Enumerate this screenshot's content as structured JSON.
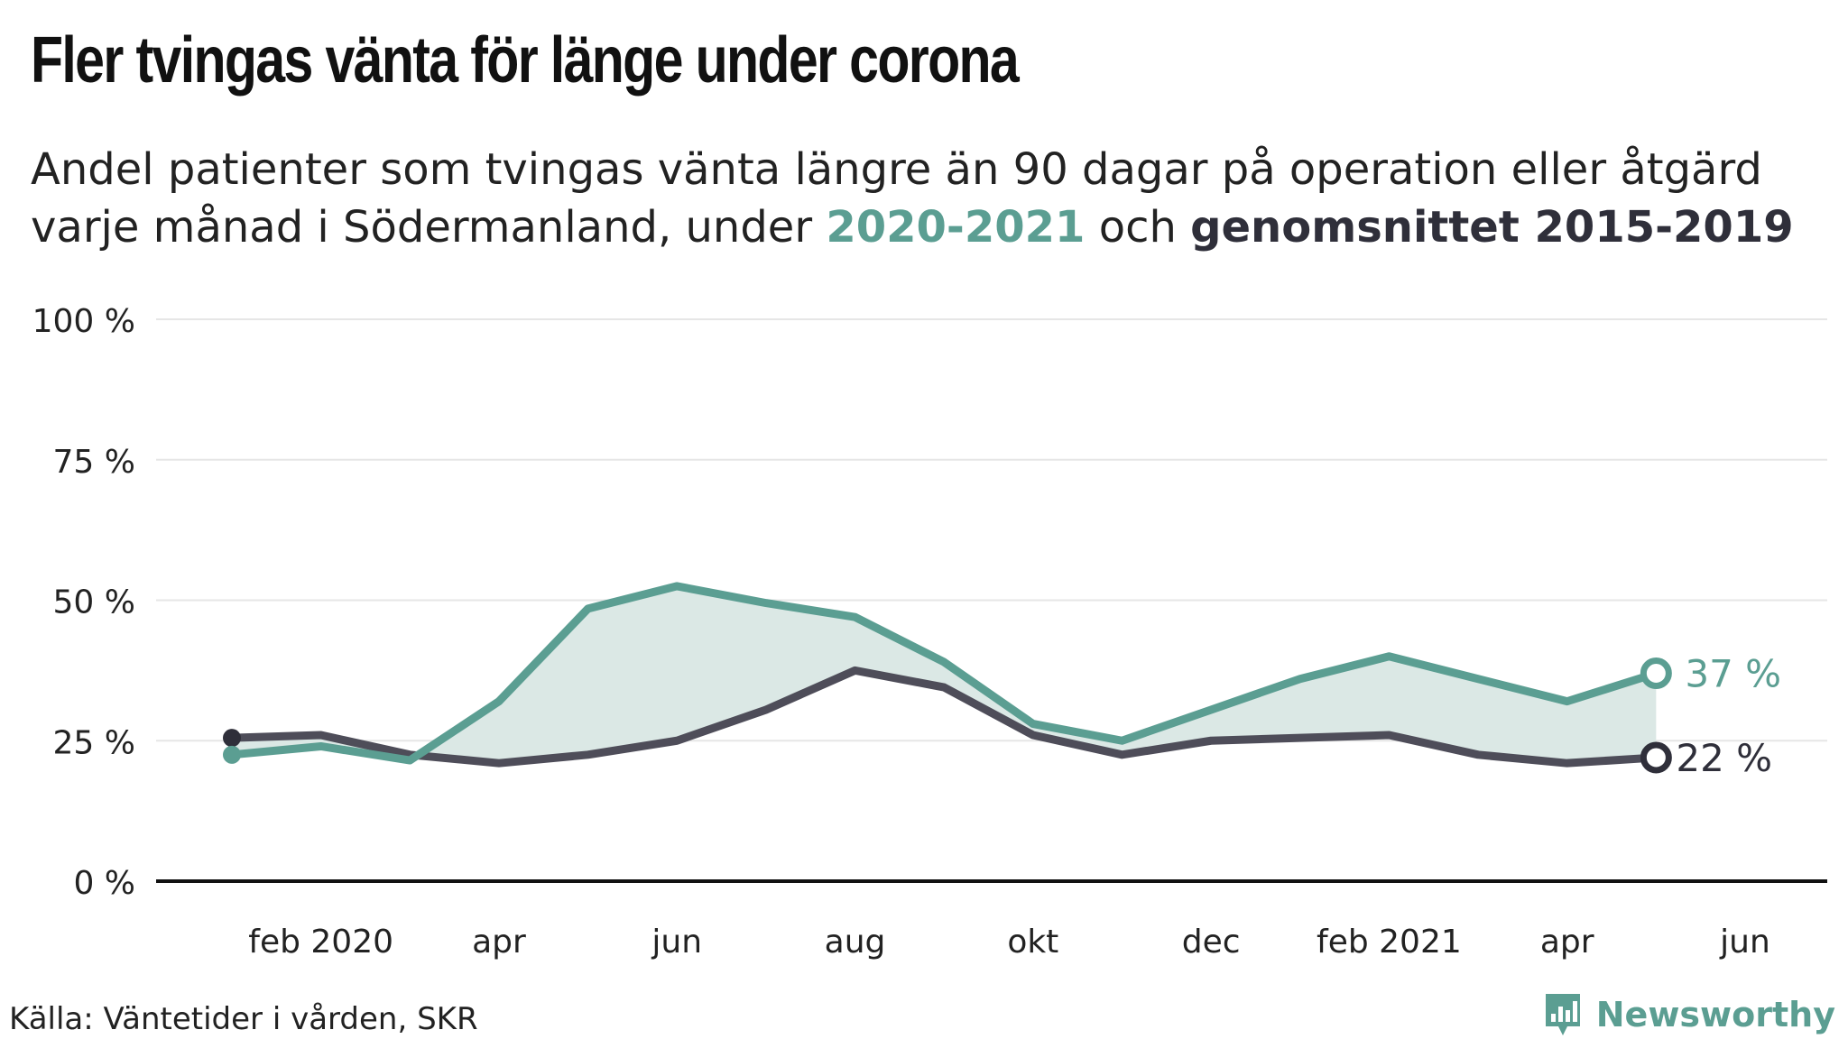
{
  "header": {
    "title": "Fler tvingas vänta för länge under corona",
    "subtitle_part1": "Andel patienter som tvingas vänta längre än 90 dagar på operation eller åtgärd varje månad i Södermanland, under ",
    "subtitle_highlight1": "2020-2021",
    "subtitle_part2": " och ",
    "subtitle_highlight2": "genomsnittet 2015-2019"
  },
  "footer": {
    "source": "Källa: Väntetider i vården, SKR",
    "brand": "Newsworthy"
  },
  "colors": {
    "series_2020": "#5b9e92",
    "series_avg": "#4e4d59",
    "fill": "#dbe8e5",
    "grid": "#e6e6e6",
    "axis": "#111111"
  },
  "chart_data": {
    "type": "line",
    "x": [
      "2020-01",
      "2020-02",
      "2020-03",
      "2020-04",
      "2020-05",
      "2020-06",
      "2020-07",
      "2020-08",
      "2020-09",
      "2020-10",
      "2020-11",
      "2020-12",
      "2021-01",
      "2021-02",
      "2021-03",
      "2021-04",
      "2021-05"
    ],
    "x_tick_positions": [
      "2020-02",
      "2020-04",
      "2020-06",
      "2020-08",
      "2020-10",
      "2020-12",
      "2021-02",
      "2021-04",
      "2021-06"
    ],
    "x_tick_labels": [
      "feb 2020",
      "apr",
      "jun",
      "aug",
      "okt",
      "dec",
      "feb 2021",
      "apr",
      "jun"
    ],
    "x_range": [
      "2020-01",
      "2021-06"
    ],
    "ylim": [
      0,
      100
    ],
    "y_ticks": [
      0,
      25,
      50,
      75,
      100
    ],
    "y_tick_labels": [
      "0 %",
      "25 %",
      "50 %",
      "75 %",
      "100 %"
    ],
    "grid": true,
    "series": [
      {
        "name": "2020-2021",
        "values": [
          22.5,
          24.0,
          21.5,
          32.0,
          48.5,
          52.5,
          49.5,
          47.0,
          39.0,
          28.0,
          25.0,
          30.5,
          36.0,
          40.0,
          36.0,
          32.0,
          37.0
        ],
        "end_label": "37 %"
      },
      {
        "name": "genomsnittet 2015-2019",
        "values": [
          25.5,
          26.0,
          22.5,
          21.0,
          22.5,
          25.0,
          30.5,
          37.5,
          34.5,
          26.0,
          22.5,
          25.0,
          25.5,
          26.0,
          22.5,
          21.0,
          22.0
        ],
        "end_label": "22 %"
      }
    ]
  }
}
